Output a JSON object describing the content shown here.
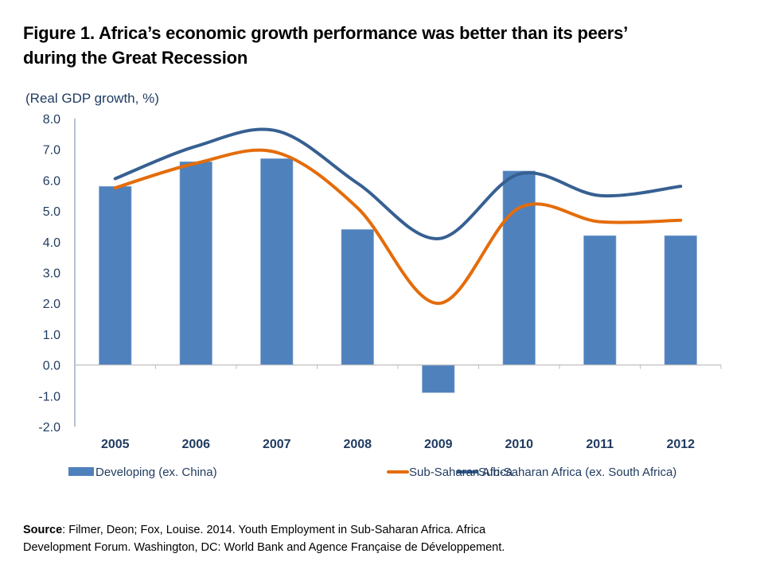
{
  "title_line1": "Figure 1. Africa’s economic growth performance was better than its peers’",
  "title_line2": "during the Great Recession",
  "source": {
    "label": "Source",
    "line1": ": Filmer, Deon; Fox, Louise. 2014. Youth Employment in Sub-Saharan Africa. Africa",
    "line2": "Development Forum. Washington, DC: World Bank and Agence Française de Développement."
  },
  "chart_data": {
    "type": "bar",
    "title": "Figure 1. Africa’s economic growth performance was better than its peers’ during the Great Recession",
    "ylabel": "(Real GDP growth, %)",
    "xlabel": "",
    "ylim": [
      -2.0,
      8.0
    ],
    "yticks": [
      "-2.0",
      "-1.0",
      "0.0",
      "1.0",
      "2.0",
      "3.0",
      "4.0",
      "5.0",
      "6.0",
      "7.0",
      "8.0"
    ],
    "ytick_values": [
      -2,
      -1,
      0,
      1,
      2,
      3,
      4,
      5,
      6,
      7,
      8
    ],
    "grid": false,
    "legend_position": "bottom",
    "categories": [
      "2005",
      "2006",
      "2007",
      "2008",
      "2009",
      "2010",
      "2011",
      "2012"
    ],
    "series": [
      {
        "name": "Developing (ex. China)",
        "kind": "bar",
        "color": "#4f81bd",
        "values": [
          5.8,
          6.6,
          6.7,
          4.4,
          -0.9,
          6.3,
          4.2,
          4.2
        ]
      },
      {
        "name": "Sub-Saharan Africa",
        "kind": "line",
        "smooth": true,
        "color": "#e46c0a",
        "values": [
          5.75,
          6.55,
          6.9,
          5.1,
          2.0,
          5.1,
          4.65,
          4.7
        ]
      },
      {
        "name": "Sub-Saharan Africa (ex. South Africa)",
        "kind": "line",
        "smooth": true,
        "color": "#376092",
        "values": [
          6.05,
          7.1,
          7.6,
          5.9,
          4.1,
          6.2,
          5.5,
          5.8
        ]
      }
    ]
  }
}
